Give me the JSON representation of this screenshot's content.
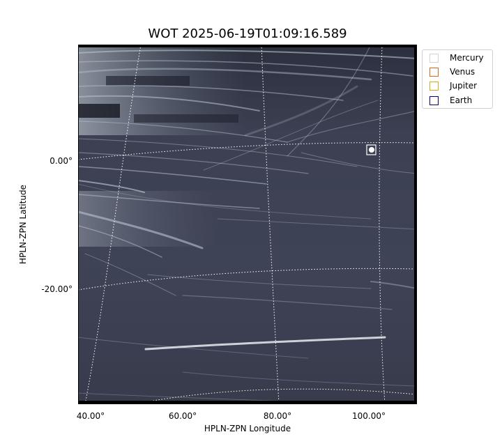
{
  "title": "WOT 2025-06-19T01:09:16.589",
  "axes": {
    "xlabel": "HPLN-ZPN Longitude",
    "ylabel": "HPLN-ZPN Latitude",
    "xticks": [
      "40.00°",
      "60.00°",
      "80.00°",
      "100.00°"
    ],
    "yticks": [
      "0.00°",
      "-20.00°"
    ]
  },
  "legend": {
    "items": [
      {
        "label": "Mercury",
        "color": "#d3d3d3"
      },
      {
        "label": "Venus",
        "color": "#d2691e"
      },
      {
        "label": "Jupiter",
        "color": "#daa520"
      },
      {
        "label": "Earth",
        "color": "#000080"
      }
    ]
  },
  "image": {
    "colormap": "bone",
    "background": "#3e4254",
    "grid_style": "dotted white",
    "marker_color": "#ffffff"
  }
}
